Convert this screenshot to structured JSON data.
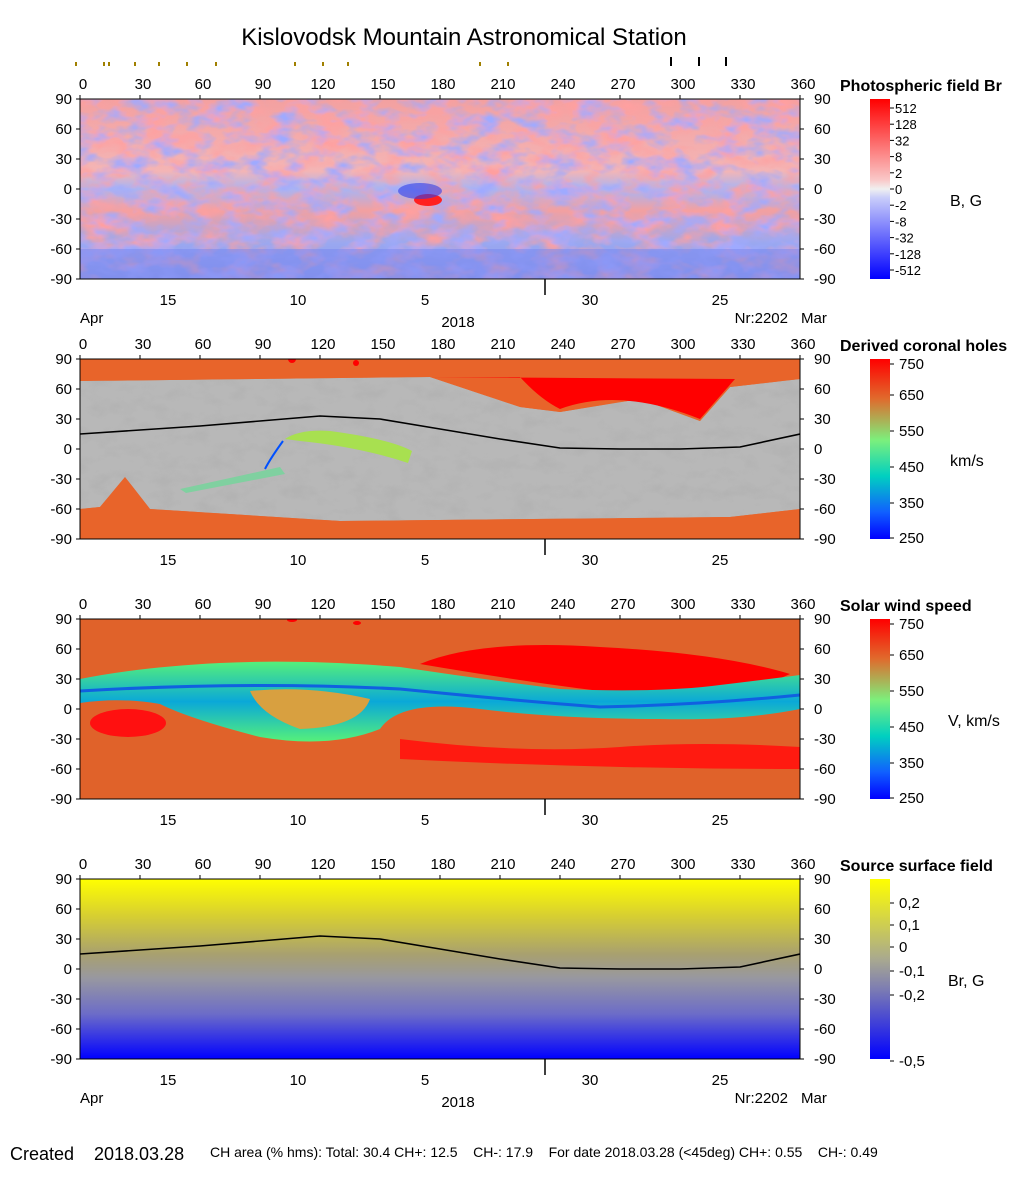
{
  "page": {
    "title": "Kislovodsk Mountain Astronomical Station",
    "footer": {
      "created_label": "Created",
      "created_date": "2018.03.28",
      "stats": "CH area (% hms): Total: 30.4 CH+: 12.5    CH-: 17.9    For date 2018.03.28 (<45deg) CH+: 0.55    CH-: 0.49"
    },
    "date_axis": {
      "month_left": "Apr",
      "month_right": "Mar",
      "year": "2018",
      "rotation": "Nr:2202",
      "day_labels": [
        "15",
        "10",
        "5",
        "30",
        "25"
      ]
    },
    "longitude_ticks": [
      "0",
      "30",
      "60",
      "90",
      "120",
      "150",
      "180",
      "210",
      "240",
      "270",
      "300",
      "330",
      "360"
    ],
    "latitude_ticks": [
      "90",
      "60",
      "30",
      "0",
      "-30",
      "-60",
      "-90"
    ]
  },
  "chart_data": [
    {
      "type": "heatmap",
      "title": "Photospheric field Br",
      "colorbar_unit": "B, G",
      "colorbar_ticks": [
        "512",
        "128",
        "32",
        "8",
        "2",
        "0",
        "-2",
        "-8",
        "-32",
        "-128",
        "-512"
      ],
      "colors": [
        "#ff0000",
        "#ffffff",
        "#0000ff"
      ],
      "xlim": [
        0,
        360
      ],
      "ylim": [
        -90,
        90
      ]
    },
    {
      "type": "heatmap",
      "title": "Derived coronal holes",
      "colorbar_unit": "km/s",
      "colorbar_ticks": [
        "750",
        "650",
        "550",
        "450",
        "350",
        "250"
      ],
      "colors": [
        "#ff0000",
        "#e8642a",
        "#66ff66",
        "#00c8c8",
        "#0000ff",
        "#a9a9a9",
        "#7a7a7a"
      ],
      "xlim": [
        0,
        360
      ],
      "ylim": [
        -90,
        90
      ],
      "neutral_line": {
        "x": [
          0,
          30,
          60,
          90,
          120,
          150,
          180,
          210,
          240,
          270,
          300,
          330,
          360
        ],
        "y": [
          15,
          19,
          23,
          28,
          33,
          30,
          20,
          10,
          1,
          0,
          0,
          2,
          15
        ]
      }
    },
    {
      "type": "heatmap",
      "title": "Solar wind speed",
      "colorbar_unit": "V, km/s",
      "colorbar_ticks": [
        "750",
        "650",
        "550",
        "450",
        "350",
        "250"
      ],
      "colors": [
        "#ff0000",
        "#e8642a",
        "#66ff66",
        "#00c8c8",
        "#0000ff"
      ],
      "xlim": [
        0,
        360
      ],
      "ylim": [
        -90,
        90
      ]
    },
    {
      "type": "heatmap",
      "title": "Source surface field",
      "colorbar_unit": "Br, G",
      "colorbar_ticks": [
        "0,2",
        "0,1",
        "0",
        "-0,1",
        "-0,2",
        "-0,5"
      ],
      "colors": [
        "#ffff00",
        "#a0a0a0",
        "#0000ff"
      ],
      "xlim": [
        0,
        360
      ],
      "ylim": [
        -90,
        90
      ],
      "neutral_line": {
        "x": [
          0,
          30,
          60,
          90,
          120,
          150,
          180,
          210,
          240,
          270,
          300,
          330,
          360
        ],
        "y": [
          15,
          19,
          23,
          28,
          33,
          30,
          20,
          10,
          1,
          0,
          0,
          2,
          15
        ]
      }
    }
  ]
}
